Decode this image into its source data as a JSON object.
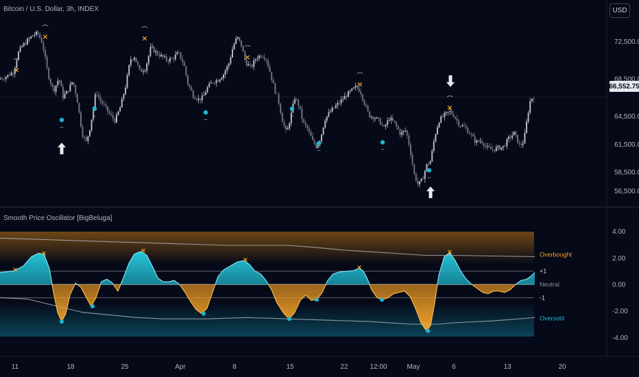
{
  "header": {
    "symbol_title": "Bitcoin / U.S. Dollar, 3h, INDEX",
    "currency": "USD",
    "indicator_title": "Smooth Price Oscillator [BigBeluga]"
  },
  "price_tag": "66,552.75",
  "chart_data": [
    {
      "type": "candlestick",
      "title": "Bitcoin / U.S. Dollar, 3h, INDEX",
      "y_ticks": [
        "72,500.00",
        "68,500.00",
        "64,500.00",
        "61,500.00",
        "58,500.00",
        "56,500.00"
      ],
      "y_tick_values": [
        72500,
        68500,
        64500,
        61500,
        58500,
        56500
      ],
      "ylim": [
        55200,
        75200
      ],
      "last_price": 66552.75,
      "close_path": [
        {
          "x": 0,
          "y": 68500
        },
        {
          "x": 10,
          "y": 68800
        },
        {
          "x": 20,
          "y": 69300
        },
        {
          "x": 26,
          "y": 71200
        },
        {
          "x": 32,
          "y": 72000
        },
        {
          "x": 40,
          "y": 72600
        },
        {
          "x": 48,
          "y": 73200
        },
        {
          "x": 55,
          "y": 73400
        },
        {
          "x": 62,
          "y": 72300
        },
        {
          "x": 70,
          "y": 69000
        },
        {
          "x": 78,
          "y": 67200
        },
        {
          "x": 86,
          "y": 68600
        },
        {
          "x": 92,
          "y": 66600
        },
        {
          "x": 98,
          "y": 67100
        },
        {
          "x": 106,
          "y": 68300
        },
        {
          "x": 112,
          "y": 66500
        },
        {
          "x": 120,
          "y": 62600
        },
        {
          "x": 126,
          "y": 61700
        },
        {
          "x": 132,
          "y": 63500
        },
        {
          "x": 140,
          "y": 67200
        },
        {
          "x": 146,
          "y": 66200
        },
        {
          "x": 152,
          "y": 65600
        },
        {
          "x": 160,
          "y": 64700
        },
        {
          "x": 168,
          "y": 64000
        },
        {
          "x": 176,
          "y": 65600
        },
        {
          "x": 184,
          "y": 68000
        },
        {
          "x": 190,
          "y": 70600
        },
        {
          "x": 196,
          "y": 70900
        },
        {
          "x": 204,
          "y": 69300
        },
        {
          "x": 212,
          "y": 69600
        },
        {
          "x": 220,
          "y": 71900
        },
        {
          "x": 228,
          "y": 71300
        },
        {
          "x": 236,
          "y": 70900
        },
        {
          "x": 244,
          "y": 70500
        },
        {
          "x": 252,
          "y": 70700
        },
        {
          "x": 260,
          "y": 71300
        },
        {
          "x": 268,
          "y": 70100
        },
        {
          "x": 274,
          "y": 68000
        },
        {
          "x": 282,
          "y": 66700
        },
        {
          "x": 290,
          "y": 66300
        },
        {
          "x": 296,
          "y": 66500
        },
        {
          "x": 302,
          "y": 67500
        },
        {
          "x": 310,
          "y": 68200
        },
        {
          "x": 318,
          "y": 68400
        },
        {
          "x": 326,
          "y": 69000
        },
        {
          "x": 334,
          "y": 70200
        },
        {
          "x": 340,
          "y": 72000
        },
        {
          "x": 346,
          "y": 73000
        },
        {
          "x": 352,
          "y": 72100
        },
        {
          "x": 358,
          "y": 70300
        },
        {
          "x": 366,
          "y": 69700
        },
        {
          "x": 374,
          "y": 70800
        },
        {
          "x": 382,
          "y": 71100
        },
        {
          "x": 388,
          "y": 70700
        },
        {
          "x": 394,
          "y": 69200
        },
        {
          "x": 400,
          "y": 67500
        },
        {
          "x": 406,
          "y": 66200
        },
        {
          "x": 412,
          "y": 64000
        },
        {
          "x": 418,
          "y": 62600
        },
        {
          "x": 424,
          "y": 64500
        },
        {
          "x": 430,
          "y": 66500
        },
        {
          "x": 436,
          "y": 65600
        },
        {
          "x": 442,
          "y": 63800
        },
        {
          "x": 448,
          "y": 63200
        },
        {
          "x": 456,
          "y": 61800
        },
        {
          "x": 462,
          "y": 61200
        },
        {
          "x": 468,
          "y": 62300
        },
        {
          "x": 474,
          "y": 64200
        },
        {
          "x": 482,
          "y": 65000
        },
        {
          "x": 490,
          "y": 65600
        },
        {
          "x": 498,
          "y": 66200
        },
        {
          "x": 506,
          "y": 66800
        },
        {
          "x": 514,
          "y": 67300
        },
        {
          "x": 520,
          "y": 67700
        },
        {
          "x": 526,
          "y": 67100
        },
        {
          "x": 532,
          "y": 65800
        },
        {
          "x": 538,
          "y": 64600
        },
        {
          "x": 546,
          "y": 64400
        },
        {
          "x": 554,
          "y": 63900
        },
        {
          "x": 560,
          "y": 63200
        },
        {
          "x": 568,
          "y": 64300
        },
        {
          "x": 576,
          "y": 63700
        },
        {
          "x": 584,
          "y": 62600
        },
        {
          "x": 592,
          "y": 63000
        },
        {
          "x": 598,
          "y": 61000
        },
        {
          "x": 604,
          "y": 58300
        },
        {
          "x": 610,
          "y": 57100
        },
        {
          "x": 616,
          "y": 57700
        },
        {
          "x": 622,
          "y": 59200
        },
        {
          "x": 628,
          "y": 59700
        },
        {
          "x": 634,
          "y": 62300
        },
        {
          "x": 640,
          "y": 64000
        },
        {
          "x": 648,
          "y": 64600
        },
        {
          "x": 656,
          "y": 65000
        },
        {
          "x": 662,
          "y": 64600
        },
        {
          "x": 670,
          "y": 63600
        },
        {
          "x": 678,
          "y": 63300
        },
        {
          "x": 686,
          "y": 62600
        },
        {
          "x": 694,
          "y": 61700
        },
        {
          "x": 702,
          "y": 61900
        },
        {
          "x": 710,
          "y": 61100
        },
        {
          "x": 718,
          "y": 60900
        },
        {
          "x": 726,
          "y": 61100
        },
        {
          "x": 734,
          "y": 61200
        },
        {
          "x": 742,
          "y": 62100
        },
        {
          "x": 750,
          "y": 62700
        },
        {
          "x": 758,
          "y": 61300
        },
        {
          "x": 764,
          "y": 61800
        },
        {
          "x": 770,
          "y": 64800
        },
        {
          "x": 774,
          "y": 66400
        },
        {
          "x": 780,
          "y": 66550
        }
      ],
      "signals": {
        "overbought_x": [
          {
            "x": 24,
            "y": 69400
          },
          {
            "x": 66,
            "y": 73000
          },
          {
            "x": 211,
            "y": 72800
          },
          {
            "x": 361,
            "y": 70800
          },
          {
            "x": 525,
            "y": 67900
          },
          {
            "x": 656,
            "y": 65400
          }
        ],
        "oversold_dot": [
          {
            "x": 90,
            "y": 64100
          },
          {
            "x": 138,
            "y": 65300
          },
          {
            "x": 300,
            "y": 64900
          },
          {
            "x": 426,
            "y": 65300
          },
          {
            "x": 465,
            "y": 61600
          },
          {
            "x": 558,
            "y": 61700
          },
          {
            "x": 626,
            "y": 58700
          }
        ],
        "up_arrows": [
          {
            "x": 90,
            "y": 61000
          },
          {
            "x": 628,
            "y": 56300
          }
        ],
        "down_arrows": [
          {
            "x": 657,
            "y": 68300
          }
        ]
      }
    },
    {
      "type": "area",
      "title": "Smooth Price Oscillator [BigBeluga]",
      "y_ticks": [
        "4.00",
        "2.00",
        "0.00",
        "-2.00",
        "-4.00"
      ],
      "y_tick_values": [
        4,
        2,
        0,
        -2,
        -4
      ],
      "ylim": [
        -4.4,
        4.4
      ],
      "levels": {
        "overbought_label": "Overbought",
        "neutral_label": "Neutral",
        "plus_one_label": "+1",
        "minus_one_label": "-1",
        "oversold_label": "Oversold"
      },
      "level_values": {
        "plus_one": 1,
        "neutral": 0,
        "minus_one": -1
      },
      "oscillator": [
        {
          "x": 0,
          "y": 0.9
        },
        {
          "x": 10,
          "y": 0.95
        },
        {
          "x": 22,
          "y": 1.05
        },
        {
          "x": 34,
          "y": 1.4
        },
        {
          "x": 46,
          "y": 2.1
        },
        {
          "x": 56,
          "y": 2.35
        },
        {
          "x": 64,
          "y": 2.3
        },
        {
          "x": 72,
          "y": 1.2
        },
        {
          "x": 78,
          "y": -0.6
        },
        {
          "x": 84,
          "y": -2.1
        },
        {
          "x": 90,
          "y": -2.8
        },
        {
          "x": 96,
          "y": -2.2
        },
        {
          "x": 102,
          "y": -0.8
        },
        {
          "x": 110,
          "y": 0.1
        },
        {
          "x": 118,
          "y": -0.2
        },
        {
          "x": 126,
          "y": -1.0
        },
        {
          "x": 133,
          "y": -1.65
        },
        {
          "x": 140,
          "y": -1.0
        },
        {
          "x": 148,
          "y": 0.2
        },
        {
          "x": 156,
          "y": 0.4
        },
        {
          "x": 164,
          "y": 0.1
        },
        {
          "x": 172,
          "y": -0.5
        },
        {
          "x": 180,
          "y": 0.5
        },
        {
          "x": 188,
          "y": 1.6
        },
        {
          "x": 196,
          "y": 2.3
        },
        {
          "x": 206,
          "y": 2.5
        },
        {
          "x": 214,
          "y": 2.2
        },
        {
          "x": 222,
          "y": 1.4
        },
        {
          "x": 230,
          "y": 0.5
        },
        {
          "x": 238,
          "y": 0.2
        },
        {
          "x": 246,
          "y": 0.2
        },
        {
          "x": 254,
          "y": 0.3
        },
        {
          "x": 262,
          "y": 0.0
        },
        {
          "x": 270,
          "y": -0.6
        },
        {
          "x": 278,
          "y": -1.3
        },
        {
          "x": 286,
          "y": -1.9
        },
        {
          "x": 294,
          "y": -2.2
        },
        {
          "x": 302,
          "y": -1.8
        },
        {
          "x": 310,
          "y": -0.6
        },
        {
          "x": 318,
          "y": 0.6
        },
        {
          "x": 326,
          "y": 1.1
        },
        {
          "x": 336,
          "y": 1.4
        },
        {
          "x": 346,
          "y": 1.7
        },
        {
          "x": 356,
          "y": 1.8
        },
        {
          "x": 364,
          "y": 1.5
        },
        {
          "x": 372,
          "y": 1.0
        },
        {
          "x": 380,
          "y": 0.8
        },
        {
          "x": 388,
          "y": 0.3
        },
        {
          "x": 396,
          "y": -0.4
        },
        {
          "x": 404,
          "y": -1.4
        },
        {
          "x": 414,
          "y": -2.2
        },
        {
          "x": 422,
          "y": -2.6
        },
        {
          "x": 430,
          "y": -2.1
        },
        {
          "x": 438,
          "y": -1.2
        },
        {
          "x": 446,
          "y": -0.8
        },
        {
          "x": 454,
          "y": -1.2
        },
        {
          "x": 462,
          "y": -1.15
        },
        {
          "x": 470,
          "y": -0.6
        },
        {
          "x": 478,
          "y": 0.3
        },
        {
          "x": 486,
          "y": 0.8
        },
        {
          "x": 496,
          "y": 0.95
        },
        {
          "x": 506,
          "y": 1.0
        },
        {
          "x": 516,
          "y": 1.05
        },
        {
          "x": 524,
          "y": 1.25
        },
        {
          "x": 530,
          "y": 1.0
        },
        {
          "x": 536,
          "y": 0.4
        },
        {
          "x": 542,
          "y": -0.4
        },
        {
          "x": 550,
          "y": -1.0
        },
        {
          "x": 558,
          "y": -1.15
        },
        {
          "x": 566,
          "y": -1.0
        },
        {
          "x": 574,
          "y": -0.7
        },
        {
          "x": 582,
          "y": -0.6
        },
        {
          "x": 590,
          "y": -0.5
        },
        {
          "x": 598,
          "y": -0.9
        },
        {
          "x": 606,
          "y": -1.8
        },
        {
          "x": 614,
          "y": -2.9
        },
        {
          "x": 622,
          "y": -3.5
        },
        {
          "x": 628,
          "y": -3.1
        },
        {
          "x": 634,
          "y": -1.4
        },
        {
          "x": 640,
          "y": 0.7
        },
        {
          "x": 648,
          "y": 2.1
        },
        {
          "x": 656,
          "y": 2.4
        },
        {
          "x": 664,
          "y": 1.8
        },
        {
          "x": 672,
          "y": 1.0
        },
        {
          "x": 680,
          "y": 0.4
        },
        {
          "x": 688,
          "y": 0.0
        },
        {
          "x": 696,
          "y": -0.3
        },
        {
          "x": 704,
          "y": -0.6
        },
        {
          "x": 712,
          "y": -0.7
        },
        {
          "x": 720,
          "y": -0.5
        },
        {
          "x": 728,
          "y": -0.5
        },
        {
          "x": 736,
          "y": -0.6
        },
        {
          "x": 744,
          "y": -0.4
        },
        {
          "x": 752,
          "y": 0.0
        },
        {
          "x": 760,
          "y": 0.3
        },
        {
          "x": 768,
          "y": 0.4
        },
        {
          "x": 774,
          "y": 0.6
        },
        {
          "x": 780,
          "y": 0.9
        }
      ],
      "upper_band": [
        {
          "x": 0,
          "y": 3.5
        },
        {
          "x": 60,
          "y": 3.4
        },
        {
          "x": 120,
          "y": 3.3
        },
        {
          "x": 180,
          "y": 3.2
        },
        {
          "x": 240,
          "y": 3.1
        },
        {
          "x": 300,
          "y": 3.0
        },
        {
          "x": 340,
          "y": 2.95
        },
        {
          "x": 380,
          "y": 2.95
        },
        {
          "x": 420,
          "y": 2.95
        },
        {
          "x": 460,
          "y": 2.8
        },
        {
          "x": 500,
          "y": 2.6
        },
        {
          "x": 560,
          "y": 2.4
        },
        {
          "x": 620,
          "y": 2.2
        },
        {
          "x": 660,
          "y": 2.2
        },
        {
          "x": 720,
          "y": 2.15
        },
        {
          "x": 780,
          "y": 2.1
        }
      ],
      "lower_band": [
        {
          "x": 0,
          "y": -1.0
        },
        {
          "x": 40,
          "y": -1.1
        },
        {
          "x": 80,
          "y": -1.6
        },
        {
          "x": 120,
          "y": -2.1
        },
        {
          "x": 160,
          "y": -2.3
        },
        {
          "x": 200,
          "y": -2.5
        },
        {
          "x": 240,
          "y": -2.6
        },
        {
          "x": 300,
          "y": -2.6
        },
        {
          "x": 360,
          "y": -2.5
        },
        {
          "x": 420,
          "y": -2.6
        },
        {
          "x": 480,
          "y": -2.7
        },
        {
          "x": 540,
          "y": -2.8
        },
        {
          "x": 600,
          "y": -3.0
        },
        {
          "x": 640,
          "y": -3.0
        },
        {
          "x": 660,
          "y": -2.9
        },
        {
          "x": 720,
          "y": -2.75
        },
        {
          "x": 780,
          "y": -2.5
        }
      ],
      "signals": {
        "overbought_x": [
          {
            "x": 22,
            "y": 1.05
          },
          {
            "x": 64,
            "y": 2.3
          },
          {
            "x": 209,
            "y": 2.5
          },
          {
            "x": 358,
            "y": 1.8
          },
          {
            "x": 524,
            "y": 1.25
          },
          {
            "x": 656,
            "y": 2.4
          }
        ],
        "oversold_dot": [
          {
            "x": 90,
            "y": -2.8
          },
          {
            "x": 135,
            "y": -1.65
          },
          {
            "x": 297,
            "y": -2.2
          },
          {
            "x": 422,
            "y": -2.6
          },
          {
            "x": 462,
            "y": -1.15
          },
          {
            "x": 557,
            "y": -1.15
          },
          {
            "x": 624,
            "y": -3.5
          }
        ]
      }
    }
  ],
  "x_axis": {
    "ticks": [
      {
        "label": "11",
        "x": 22
      },
      {
        "label": "18",
        "x": 103
      },
      {
        "label": "25",
        "x": 182
      },
      {
        "label": "Apr",
        "x": 263
      },
      {
        "label": "8",
        "x": 342
      },
      {
        "label": "15",
        "x": 423
      },
      {
        "label": "22",
        "x": 502
      },
      {
        "label": "12:00",
        "x": 552
      },
      {
        "label": "May",
        "x": 603
      },
      {
        "label": "6",
        "x": 662
      },
      {
        "label": "13",
        "x": 740
      },
      {
        "label": "20",
        "x": 820
      }
    ]
  },
  "colors": {
    "background": "#050918",
    "candle": "#9598a1",
    "teal": "#1fb6d0",
    "orange": "#f2a024",
    "band": "#b2b5be",
    "text": "#b2b5be"
  }
}
